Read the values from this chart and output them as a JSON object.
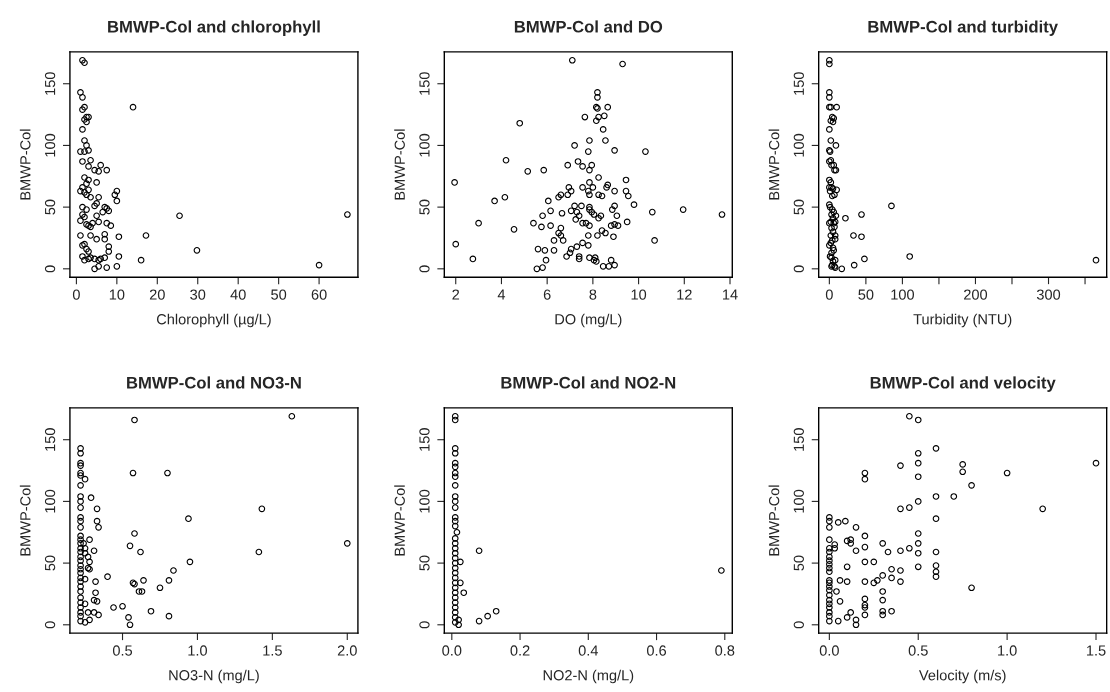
{
  "chart_data": [
    {
      "type": "scatter",
      "title": "BMWP-Col and chlorophyll",
      "xlabel": "Chlorophyll (µg/L)",
      "ylabel": "BMWP-Col",
      "color": "#000000",
      "marker": "circle",
      "xlim": [
        -1.6,
        69.6
      ],
      "ylim": [
        -6.8,
        175.8
      ],
      "xticks": [
        0,
        10,
        20,
        30,
        40,
        50,
        60
      ],
      "yticks": [
        0,
        50,
        100,
        150
      ],
      "x": [
        1.5,
        2,
        1,
        1.5,
        2,
        1.5,
        2.5,
        3,
        2,
        2.5,
        1.5,
        2,
        2.5,
        1,
        2,
        3,
        1.5,
        3.5,
        3,
        4.5,
        5.5,
        6,
        7.5,
        2,
        3,
        2.5,
        5,
        1,
        1.5,
        2,
        3,
        2.5,
        3.5,
        5.5,
        9.5,
        10,
        10,
        1.5,
        2.5,
        4.5,
        5,
        7,
        7.5,
        8,
        6.5,
        1,
        1.5,
        2,
        2.5,
        3,
        3.5,
        4,
        5.5,
        5,
        7.5,
        8.5,
        25.5,
        67,
        14,
        1,
        3.5,
        5,
        7,
        7,
        1.5,
        2,
        2.5,
        3,
        8,
        8,
        10.5,
        17.2,
        29.8,
        16,
        60,
        1.5,
        2,
        3,
        3.5,
        4.5,
        5.5,
        6,
        7,
        10.5,
        4.5,
        5.5,
        7.5,
        10
      ],
      "values": [
        169,
        167,
        143,
        139,
        131,
        129,
        123,
        123,
        121,
        119,
        113,
        104,
        100,
        95,
        95,
        96,
        87,
        88,
        83,
        80,
        79,
        84,
        80,
        74,
        72,
        69,
        70,
        63,
        66,
        62,
        64,
        60,
        58,
        58,
        60,
        63,
        55,
        50,
        48,
        51,
        53,
        50,
        49,
        47,
        46,
        39,
        44,
        42,
        36,
        35,
        34,
        37,
        38,
        43,
        37,
        35,
        43,
        44,
        131,
        27,
        27,
        24,
        28,
        24,
        19,
        20,
        16,
        14,
        18,
        14,
        26,
        27,
        15,
        7,
        3,
        10,
        7,
        8,
        9,
        8,
        7,
        8,
        9,
        10,
        0,
        2,
        1,
        2
      ]
    },
    {
      "type": "scatter",
      "title": "BMWP-Col and DO",
      "xlabel": "DO (mg/L)",
      "ylabel": "BMWP-Col",
      "color": "#000000",
      "marker": "circle",
      "xlim": [
        1.5,
        14.1
      ],
      "ylim": [
        -6.8,
        175.8
      ],
      "xticks": [
        2,
        4,
        6,
        8,
        10,
        12,
        14
      ],
      "yticks": [
        0,
        50,
        100,
        150
      ],
      "x": [
        7.1,
        9.3,
        8.2,
        8.2,
        8.15,
        8.2,
        8.65,
        7.65,
        8.25,
        8.5,
        8.15,
        8.45,
        4.8,
        7.2,
        7.85,
        8.55,
        7.8,
        8.95,
        10.3,
        4.2,
        7.35,
        6.9,
        7.55,
        7.95,
        5.15,
        5.85,
        7.85,
        8.25,
        7.85,
        1.95,
        9.45,
        6.95,
        7.55,
        7.05,
        7.8,
        8.0,
        8.65,
        8.6,
        8.95,
        9.45,
        9.55,
        6.6,
        6.9,
        7.85,
        8.25,
        8.4,
        6.5,
        6.05,
        3.7,
        4.15,
        9.8,
        7.2,
        7.5,
        7.85,
        8.95,
        6.15,
        7.05,
        7.3,
        7.85,
        7.95,
        8.85,
        10.6,
        11.95,
        13.65,
        5.8,
        6.65,
        7.4,
        8.05,
        8.35,
        8.25,
        9.05,
        7.25,
        5.4,
        3.0,
        7.55,
        7.7,
        7.85,
        8.8,
        8.95,
        9.1,
        9.5,
        4.55,
        5.75,
        6.15,
        6.6,
        8.4,
        8.55,
        6.5,
        6.6,
        7.8,
        8.2,
        8.9,
        6.3,
        6.7,
        10.7,
        2.0,
        7.55,
        7.8,
        7.3,
        7.05,
        5.6,
        5.9,
        6.3,
        7.0,
        6.85,
        7.4,
        7.4,
        7.85,
        8.1,
        8.15,
        8.8,
        8.05,
        2.75,
        5.95,
        5.55,
        5.8,
        8.45,
        8.7,
        8.95
      ],
      "values": [
        169,
        166,
        143,
        139,
        131,
        130,
        131,
        123,
        123,
        124,
        120,
        113,
        118,
        100,
        104,
        104,
        95,
        96,
        95,
        88,
        87,
        84,
        83,
        84,
        79,
        80,
        80,
        74,
        70,
        70,
        72,
        66,
        66,
        63,
        63,
        66,
        68,
        66,
        63,
        63,
        59,
        60,
        60,
        60,
        60,
        59,
        58,
        55,
        55,
        58,
        52,
        51,
        51,
        50,
        51,
        47,
        47,
        46,
        48,
        46,
        48,
        46,
        48,
        44,
        43,
        45,
        43,
        44,
        43,
        41,
        43,
        40,
        37,
        37,
        37,
        37,
        35,
        35,
        36,
        35,
        38,
        32,
        34,
        35,
        33,
        31,
        29,
        29,
        27,
        27,
        27,
        26,
        23,
        23,
        23,
        20,
        21,
        19,
        18,
        16,
        16,
        15,
        15,
        13,
        10,
        10,
        8,
        9,
        9,
        6,
        7,
        7,
        8,
        7,
        0,
        1,
        2,
        2,
        3
      ]
    },
    {
      "type": "scatter",
      "title": "BMWP-Col and turbidity",
      "xlabel": "Turbidity (NTU)",
      "ylabel": "BMWP-Col",
      "color": "#000000",
      "marker": "circle",
      "xlim": [
        -14.6,
        379.6
      ],
      "ylim": [
        -6.8,
        175.8
      ],
      "xticks": [
        0,
        50,
        100,
        {
          "value": 150,
          "label": null
        },
        200,
        {
          "value": 250,
          "label": null
        },
        300,
        {
          "value": 350,
          "label": null
        }
      ],
      "yticks": [
        0,
        50,
        100,
        150
      ],
      "x": [
        0,
        0,
        0,
        0,
        0,
        2,
        10,
        4,
        6,
        2,
        5,
        0,
        2,
        9,
        0,
        1,
        0,
        2,
        3,
        6,
        7,
        9,
        0,
        2,
        0,
        3,
        10,
        5,
        1,
        7,
        4,
        0,
        1,
        4,
        3,
        6,
        9,
        5,
        22,
        44,
        85,
        0,
        2,
        6,
        8,
        3,
        7,
        5,
        2,
        8,
        33,
        44,
        4,
        8,
        0,
        2,
        5,
        6,
        3,
        1,
        3,
        8,
        5,
        4,
        48,
        110,
        365,
        34,
        17,
        8,
        7,
        3
      ],
      "values": [
        169,
        166,
        143,
        139,
        131,
        131,
        131,
        123,
        122,
        120,
        119,
        113,
        104,
        100,
        96,
        95,
        87,
        88,
        84,
        84,
        80,
        80,
        72,
        70,
        66,
        66,
        64,
        65,
        63,
        60,
        59,
        52,
        50,
        48,
        44,
        46,
        43,
        41,
        41,
        44,
        51,
        37,
        38,
        37,
        38,
        33,
        34,
        30,
        27,
        27,
        27,
        26,
        23,
        24,
        19,
        21,
        17,
        15,
        13,
        10,
        9,
        7,
        6,
        3,
        8,
        10,
        7,
        3,
        0,
        1,
        2,
        2
      ]
    },
    {
      "type": "scatter",
      "title": "BMWP-Col and NO3-N",
      "xlabel": "NO3-N (mg/L)",
      "ylabel": "BMWP-Col",
      "color": "#000000",
      "marker": "circle",
      "xlim": [
        0.149,
        2.071
      ],
      "ylim": [
        -6.8,
        175.8
      ],
      "xticks": [
        {
          "value": 0.5,
          "label": "0.5"
        },
        {
          "value": 1,
          "label": "1.0"
        },
        {
          "value": 1.5,
          "label": "1.5"
        },
        {
          "value": 2,
          "label": "2.0"
        }
      ],
      "yticks": [
        0,
        50,
        100,
        150
      ],
      "x": [
        0.22,
        0.22,
        0.22,
        0.22,
        0.22,
        0.22,
        0.25,
        0.22,
        0.22,
        0.22,
        0.22,
        0.22,
        0.22,
        0.22,
        0.22,
        0.22,
        0.22,
        0.22,
        0.22,
        0.22,
        0.22,
        0.22,
        0.22,
        0.22,
        0.22,
        0.22,
        0.22,
        0.22,
        0.22,
        0.22,
        0.22,
        0.22,
        0.22,
        0.22,
        0.24,
        0.25,
        0.25,
        0.27,
        0.28,
        0.27,
        0.28,
        0.25,
        0.28,
        0.29,
        0.33,
        0.33,
        0.34,
        0.31,
        0.32,
        0.32,
        0.31,
        0.33,
        0.25,
        0.27,
        0.31,
        0.34,
        0.28,
        0.25,
        0.4,
        0.44,
        0.5,
        0.54,
        0.55,
        0.55,
        0.57,
        0.58,
        0.58,
        0.57,
        0.58,
        0.62,
        0.61,
        0.63,
        0.64,
        0.69,
        0.75,
        0.8,
        0.81,
        0.81,
        0.84,
        0.94,
        0.95,
        1.41,
        1.43,
        1.63,
        2.0
      ],
      "values": [
        143,
        139,
        131,
        129,
        123,
        121,
        118,
        113,
        104,
        100,
        95,
        87,
        84,
        79,
        72,
        69,
        66,
        62,
        59,
        55,
        52,
        48,
        45,
        42,
        38,
        35,
        31,
        27,
        22,
        18,
        14,
        10,
        7,
        3,
        66,
        62,
        58,
        55,
        51,
        46,
        45,
        37,
        69,
        103,
        94,
        84,
        79,
        60,
        35,
        26,
        20,
        19,
        17,
        10,
        10,
        8,
        4,
        2,
        39,
        14,
        15,
        6,
        0,
        64,
        123,
        166,
        74,
        34,
        33,
        59,
        27,
        27,
        36,
        11,
        30,
        123,
        36,
        7,
        44,
        86,
        51,
        59,
        94,
        169,
        66
      ]
    },
    {
      "type": "scatter",
      "title": "BMWP-Col and NO2-N",
      "xlabel": "NO2-N (mg/L)",
      "ylabel": "BMWP-Col",
      "color": "#000000",
      "marker": "circle",
      "xlim": [
        -0.022,
        0.822
      ],
      "ylim": [
        -6.8,
        175.8
      ],
      "xticks": [
        {
          "value": 0,
          "label": "0.0"
        },
        0.2,
        0.4,
        0.6,
        0.8
      ],
      "yticks": [
        0,
        50,
        100,
        150
      ],
      "x": [
        0.01,
        0.01,
        0.01,
        0.01,
        0.01,
        0.01,
        0.01,
        0.01,
        0.01,
        0.01,
        0.01,
        0.01,
        0.01,
        0.01,
        0.01,
        0.015,
        0.01,
        0.01,
        0.01,
        0.01,
        0.01,
        0.01,
        0.025,
        0.01,
        0.01,
        0.01,
        0.01,
        0.025,
        0.01,
        0.035,
        0.01,
        0.01,
        0.01,
        0.01,
        0.01,
        0.01,
        0.01,
        0.02,
        0.02,
        0.08,
        0.08,
        0.105,
        0.13,
        0.79
      ],
      "values": [
        169,
        166,
        143,
        139,
        131,
        128,
        123,
        120,
        113,
        104,
        100,
        95,
        87,
        84,
        80,
        75,
        70,
        66,
        62,
        58,
        54,
        50,
        51,
        46,
        42,
        38,
        34,
        34,
        30,
        26,
        26,
        22,
        18,
        14,
        10,
        6,
        2,
        4,
        0,
        60,
        3,
        7,
        11,
        44
      ]
    },
    {
      "type": "scatter",
      "title": "BMWP-Col and velocity",
      "xlabel": "Velocity (m/s)",
      "ylabel": "BMWP-Col",
      "color": "#000000",
      "marker": "circle",
      "xlim": [
        -0.06,
        1.56
      ],
      "ylim": [
        -6.8,
        175.8
      ],
      "xticks": [
        {
          "value": 0,
          "label": "0.0"
        },
        0.5,
        {
          "value": 1,
          "label": "1.0"
        },
        1.5
      ],
      "yticks": [
        0,
        50,
        100,
        150
      ],
      "x": [
        0,
        0,
        0,
        0,
        0,
        0,
        0,
        0,
        0,
        0,
        0,
        0,
        0,
        0,
        0,
        0,
        0,
        0,
        0,
        0,
        0,
        0,
        0.03,
        0.03,
        0.04,
        0.05,
        0.05,
        0.06,
        0.06,
        0.09,
        0.1,
        0.1,
        0.1,
        0.1,
        0.12,
        0.12,
        0.12,
        0.15,
        0.15,
        0.15,
        0.15,
        0.2,
        0.2,
        0.2,
        0.2,
        0.2,
        0.2,
        0.2,
        0.2,
        0.2,
        0.2,
        0.25,
        0.25,
        0.27,
        0.3,
        0.3,
        0.3,
        0.3,
        0.3,
        0.3,
        0.33,
        0.35,
        0.35,
        0.35,
        0.4,
        0.4,
        0.4,
        0.4,
        0.4,
        0.45,
        0.45,
        0.45,
        0.5,
        0.5,
        0.5,
        0.5,
        0.5,
        0.5,
        0.5,
        0.5,
        0.5,
        0.6,
        0.6,
        0.6,
        0.6,
        0.6,
        0.6,
        0.6,
        0.7,
        0.75,
        0.75,
        0.8,
        0.8,
        1.0,
        1.2,
        1.5
      ],
      "values": [
        87,
        84,
        79,
        69,
        62,
        59,
        55,
        52,
        49,
        46,
        43,
        36,
        34,
        31,
        28,
        24,
        20,
        17,
        14,
        10,
        7,
        3,
        62,
        65,
        27,
        83,
        3,
        36,
        19,
        84,
        68,
        47,
        35,
        6,
        69,
        66,
        10,
        79,
        60,
        4,
        0,
        123,
        118,
        72,
        63,
        51,
        35,
        21,
        16,
        14,
        8,
        51,
        34,
        36,
        66,
        40,
        27,
        20,
        11,
        8,
        59,
        45,
        38,
        11,
        129,
        94,
        60,
        44,
        35,
        169,
        95,
        62,
        166,
        139,
        131,
        120,
        100,
        74,
        66,
        58,
        47,
        143,
        104,
        86,
        59,
        48,
        43,
        39,
        104,
        130,
        124,
        113,
        30,
        123,
        94,
        131
      ]
    }
  ]
}
